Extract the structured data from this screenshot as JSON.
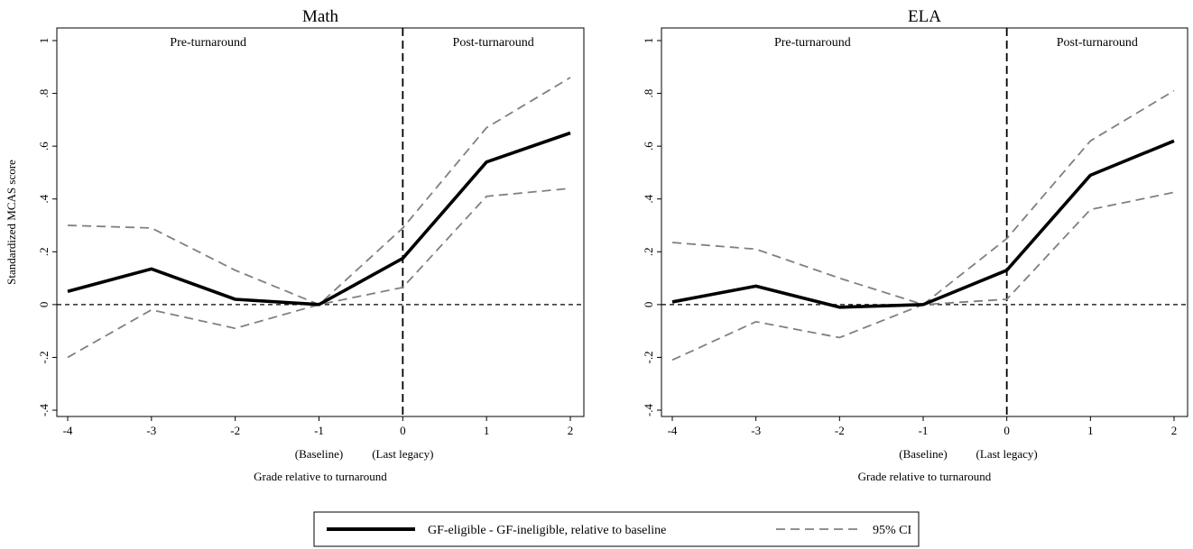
{
  "chart_data": [
    {
      "type": "line",
      "title": "Math",
      "xlabel": "Grade relative to turnaround",
      "ylabel": "Standardized MCAS score",
      "x": [
        -4,
        -3,
        -2,
        -1,
        0,
        1,
        2
      ],
      "xlim": [
        -4,
        2
      ],
      "ylim": [
        -0.4,
        1
      ],
      "xticks": [
        -4,
        -3,
        -2,
        -1,
        0,
        1,
        2
      ],
      "xtick_labels": [
        "-4",
        "-3",
        "-2",
        "-1",
        "0",
        "1",
        "2"
      ],
      "yticks": [
        -0.4,
        -0.2,
        0,
        0.2,
        0.4,
        0.6,
        0.8,
        1
      ],
      "ytick_labels": [
        "-.4",
        "-.2",
        "0",
        ".2",
        ".4",
        ".6",
        ".8",
        "1"
      ],
      "xtick_sublabels": [
        {
          "x": -1,
          "text": "(Baseline)"
        },
        {
          "x": 0,
          "text": "(Last legacy)"
        }
      ],
      "regions": [
        "Pre-turnaround",
        "Post-turnaround"
      ],
      "vline_x": 0,
      "hline_y": 0,
      "grid": false,
      "series": [
        {
          "name": "GF-eligible - GF-ineligible, relative to baseline",
          "style": "solid",
          "values": [
            0.05,
            0.135,
            0.02,
            0.0,
            0.175,
            0.54,
            0.65
          ]
        },
        {
          "name": "95% CI",
          "style": "dashed",
          "values": [
            0.3,
            0.29,
            0.13,
            0.0,
            0.29,
            0.67,
            0.86
          ]
        },
        {
          "name": "95% CI",
          "style": "dashed",
          "values": [
            -0.2,
            -0.02,
            -0.09,
            0.0,
            0.065,
            0.41,
            0.44
          ]
        }
      ]
    },
    {
      "type": "line",
      "title": "ELA",
      "xlabel": "Grade relative to turnaround",
      "ylabel": "",
      "x": [
        -4,
        -3,
        -2,
        -1,
        0,
        1,
        2
      ],
      "xlim": [
        -4,
        2
      ],
      "ylim": [
        -0.4,
        1
      ],
      "xticks": [
        -4,
        -3,
        -2,
        -1,
        0,
        1,
        2
      ],
      "xtick_labels": [
        "-4",
        "-3",
        "-2",
        "-1",
        "0",
        "1",
        "2"
      ],
      "yticks": [
        -0.4,
        -0.2,
        0,
        0.2,
        0.4,
        0.6,
        0.8,
        1
      ],
      "ytick_labels": [
        "-.4",
        "-.2",
        "0",
        ".2",
        ".4",
        ".6",
        ".8",
        "1"
      ],
      "xtick_sublabels": [
        {
          "x": -1,
          "text": "(Baseline)"
        },
        {
          "x": 0,
          "text": "(Last legacy)"
        }
      ],
      "regions": [
        "Pre-turnaround",
        "Post-turnaround"
      ],
      "vline_x": 0,
      "hline_y": 0,
      "grid": false,
      "series": [
        {
          "name": "GF-eligible - GF-ineligible, relative to baseline",
          "style": "solid",
          "values": [
            0.01,
            0.07,
            -0.01,
            0.0,
            0.13,
            0.49,
            0.62
          ]
        },
        {
          "name": "95% CI",
          "style": "dashed",
          "values": [
            0.235,
            0.21,
            0.1,
            0.0,
            0.25,
            0.62,
            0.81
          ]
        },
        {
          "name": "95% CI",
          "style": "dashed",
          "values": [
            -0.21,
            -0.065,
            -0.125,
            0.0,
            0.02,
            0.36,
            0.425
          ]
        }
      ]
    }
  ],
  "legend": {
    "placement": "bottom",
    "items": [
      {
        "label": "GF-eligible - GF-ineligible, relative to baseline",
        "style": "solid"
      },
      {
        "label": "95% CI",
        "style": "dashed"
      }
    ]
  },
  "colors": {
    "point_estimate": "#000000",
    "ci": "#808080",
    "reference": "#000000"
  }
}
